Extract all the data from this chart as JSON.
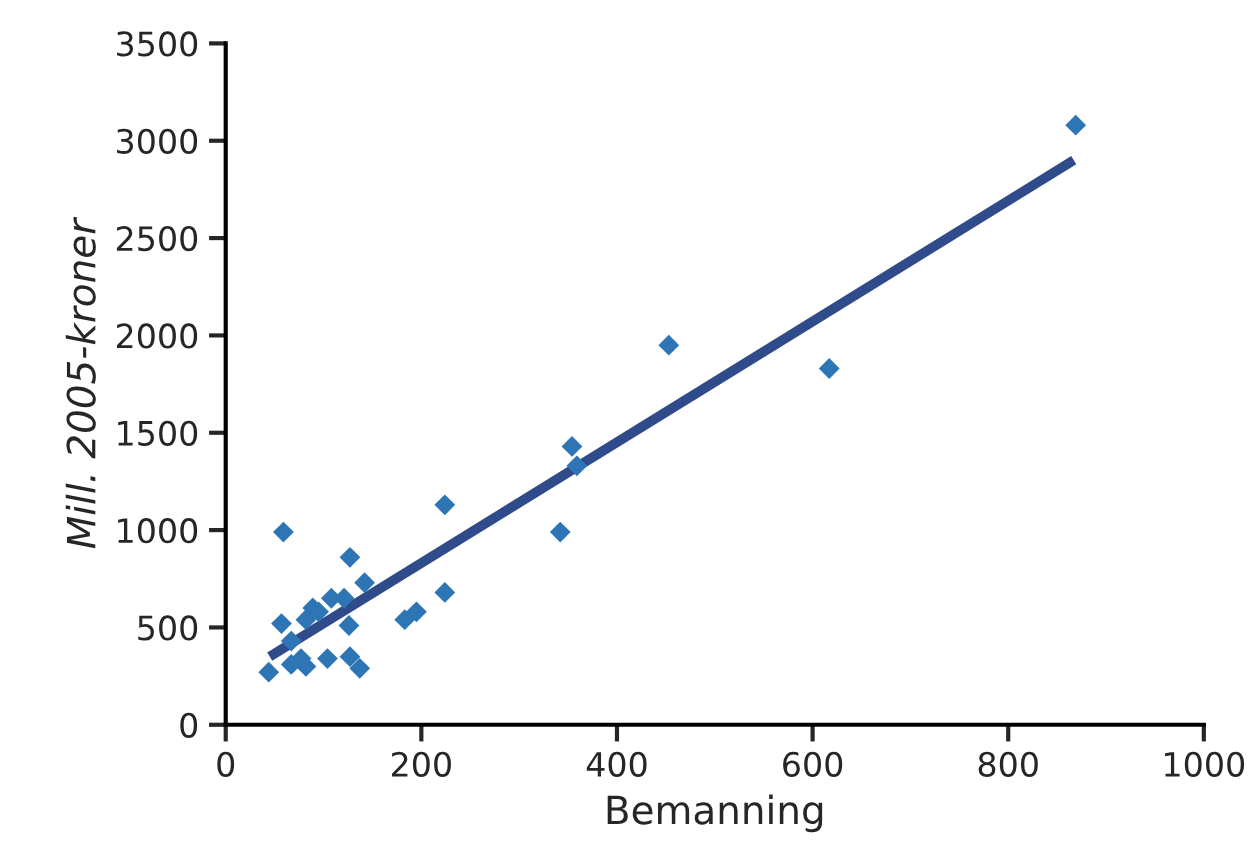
{
  "chart_data": {
    "type": "scatter",
    "xlabel": "Bemanning",
    "ylabel": "Mill. 2005-kroner",
    "xlim": [
      0,
      1000
    ],
    "xticks": [
      0,
      200,
      400,
      600,
      800,
      1000
    ],
    "ylim": [
      0,
      3500
    ],
    "yticks": [
      0,
      500,
      1000,
      1500,
      2000,
      2500,
      3000,
      3500
    ],
    "grid": false,
    "legend": false,
    "marker": "diamond",
    "series": [
      {
        "color": "#2e75b6",
        "x": [
          59,
          44,
          57,
          67,
          67,
          77,
          82,
          82,
          89,
          95,
          104,
          108,
          121,
          126,
          127,
          127,
          137,
          142,
          183,
          195,
          224,
          224,
          342,
          354,
          359,
          453,
          617,
          869
        ],
        "values": [
          990,
          270,
          520,
          430,
          310,
          340,
          300,
          540,
          600,
          580,
          340,
          650,
          650,
          510,
          860,
          350,
          290,
          730,
          540,
          580,
          1130,
          680,
          990,
          1430,
          1330,
          1950,
          1830,
          3080
        ]
      },
      {
        "type": "line",
        "color": "#2f4b8a",
        "line_style": "solid",
        "marker": "none",
        "x": [
          45,
          867
        ],
        "values": [
          350,
          2900
        ]
      }
    ]
  }
}
